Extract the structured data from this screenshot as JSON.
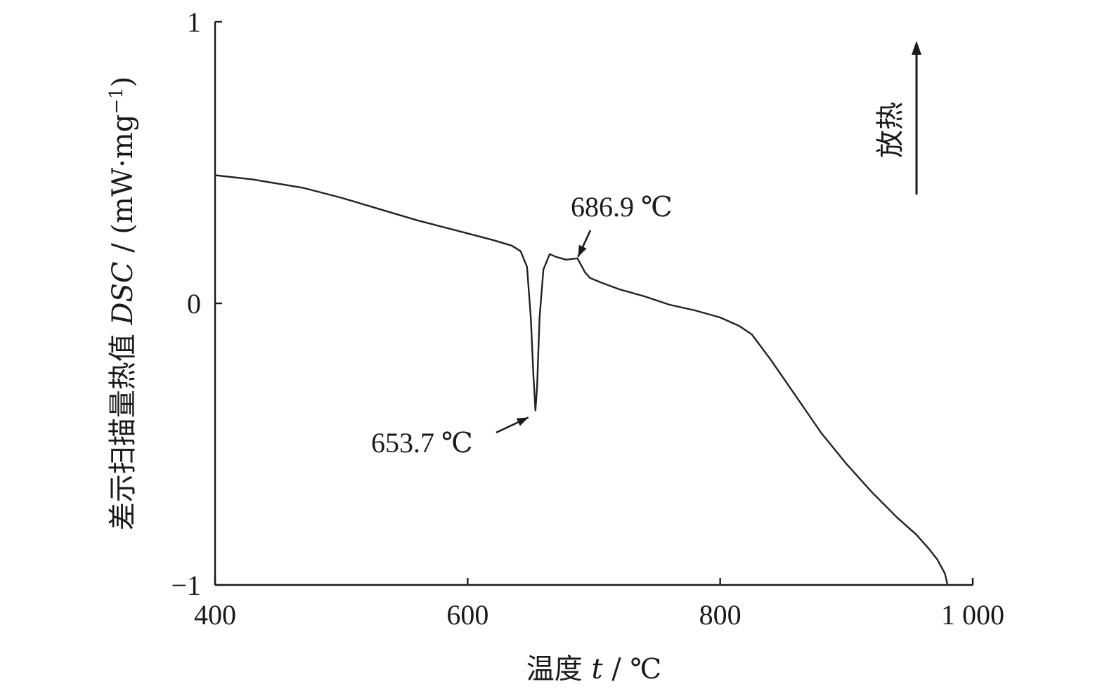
{
  "chart_data": {
    "type": "line",
    "title": "",
    "xlabel": {
      "prefix": "温度 ",
      "var": "t",
      "suffix": " / ℃"
    },
    "ylabel": {
      "prefix": "差示扫描量热值 ",
      "var": "DSC",
      "suffix": " / (mW·mg",
      "sup": "−1",
      "close": ")"
    },
    "xlim": [
      400,
      1000
    ],
    "ylim": [
      -1,
      1
    ],
    "x_ticks": [
      400,
      600,
      800,
      1000
    ],
    "x_tick_labels": [
      "400",
      "600",
      "800",
      "1 000"
    ],
    "y_ticks": [
      1,
      0,
      -1
    ],
    "y_tick_labels": [
      "1",
      "0",
      "−1"
    ],
    "grid": false,
    "series": [
      {
        "x": [
          400,
          430,
          470,
          500,
          530,
          560,
          590,
          620,
          635,
          642,
          647,
          650,
          652,
          653.7,
          655,
          657,
          660,
          665,
          670,
          678,
          686.9,
          690,
          693,
          697,
          705,
          720,
          740,
          760,
          780,
          800,
          815,
          825,
          840,
          860,
          880,
          900,
          920,
          940,
          955,
          965,
          972,
          978,
          980
        ],
        "y": [
          0.455,
          0.44,
          0.41,
          0.375,
          0.335,
          0.295,
          0.26,
          0.225,
          0.205,
          0.185,
          0.13,
          -0.05,
          -0.25,
          -0.38,
          -0.3,
          -0.05,
          0.12,
          0.175,
          0.165,
          0.155,
          0.16,
          0.135,
          0.11,
          0.09,
          0.075,
          0.05,
          0.025,
          -0.005,
          -0.025,
          -0.05,
          -0.08,
          -0.11,
          -0.2,
          -0.33,
          -0.46,
          -0.57,
          -0.67,
          -0.76,
          -0.82,
          -0.87,
          -0.91,
          -0.96,
          -1.0
        ]
      }
    ],
    "annotations": [
      {
        "text": "686.9 ℃",
        "x": 686.9,
        "y": 0.16
      },
      {
        "text": "653.7 ℃",
        "x": 653.7,
        "y": -0.38
      }
    ],
    "side_note": {
      "text": "放热",
      "arrow": "up"
    }
  }
}
